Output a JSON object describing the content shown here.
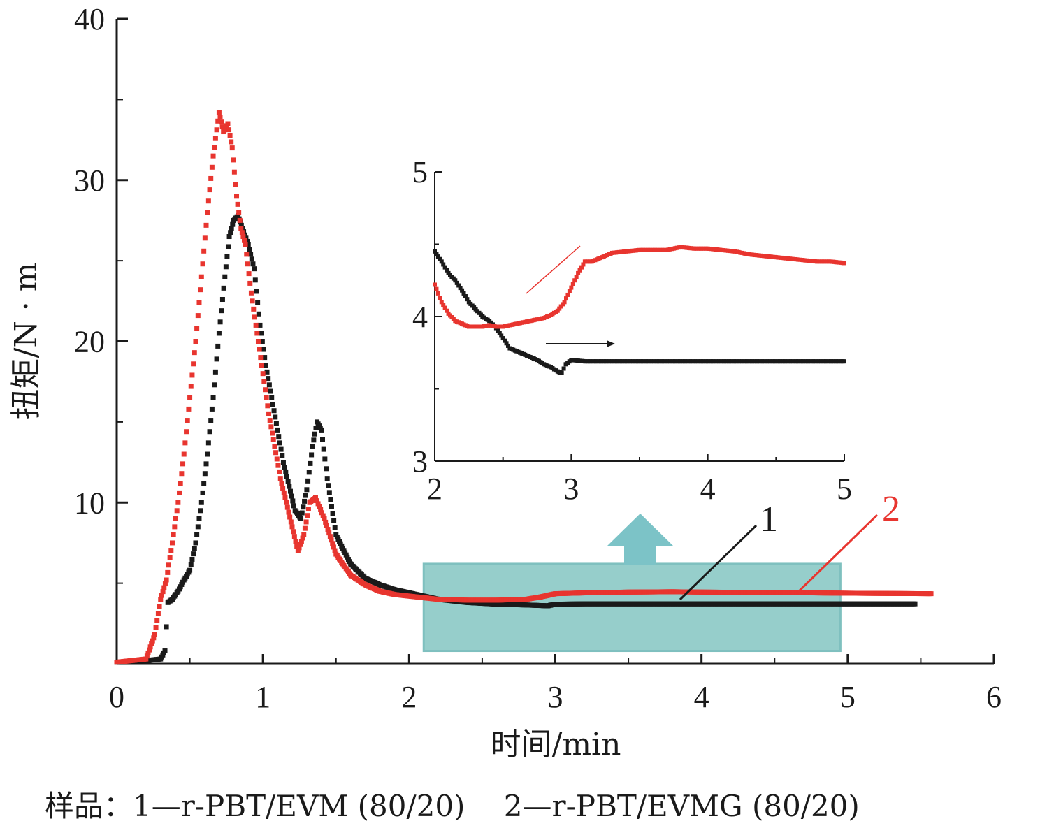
{
  "colors": {
    "series1": "#1a1a1a",
    "series2": "#e8352f",
    "highlight_fill": "#96cecb",
    "highlight_stroke": "#7fc0bf",
    "arrow": "#7cc3c7",
    "axis": "#1a1a1a"
  },
  "caption": "样品：1—r-PBT/EVM (80/20)　 2—r-PBT/EVMG (80/20)",
  "labels": {
    "series1": "1",
    "series2": "2"
  },
  "chart_data": [
    {
      "id": "main",
      "type": "scatter",
      "xlabel": "时间/min",
      "ylabel": "扭矩/N · m",
      "xlim": [
        0,
        6
      ],
      "ylim": [
        0,
        40
      ],
      "xticks": [
        0,
        1,
        2,
        3,
        4,
        5,
        6
      ],
      "xtick_labels": [
        "0",
        "1",
        "2",
        "3",
        "4",
        "5",
        "6"
      ],
      "yticks": [
        10,
        20,
        30,
        40
      ],
      "ytick_labels": [
        "10",
        "20",
        "30",
        "40"
      ],
      "highlight_region": {
        "x": [
          2.1,
          4.95
        ],
        "y": [
          0.8,
          6.2
        ]
      },
      "series": [
        {
          "name": "1",
          "color": "#1a1a1a",
          "x": [
            0,
            0.1,
            0.2,
            0.25,
            0.3,
            0.33,
            0.35,
            0.38,
            0.42,
            0.46,
            0.5,
            0.54,
            0.58,
            0.62,
            0.66,
            0.7,
            0.74,
            0.77,
            0.8,
            0.83,
            0.86,
            0.9,
            0.94,
            0.98,
            1.02,
            1.06,
            1.1,
            1.14,
            1.18,
            1.22,
            1.26,
            1.3,
            1.34,
            1.37,
            1.4,
            1.44,
            1.5,
            1.6,
            1.7,
            1.8,
            1.9,
            2.0,
            2.2,
            2.4,
            2.6,
            2.8,
            2.95,
            3.0,
            3.2,
            3.5,
            4.0,
            4.5,
            5.0,
            5.46
          ],
          "y": [
            0.1,
            0.15,
            0.2,
            0.25,
            0.3,
            0.8,
            3.8,
            4.0,
            4.5,
            5.2,
            5.8,
            7.5,
            10.0,
            13.0,
            16.5,
            20.5,
            24.0,
            26.5,
            27.5,
            27.8,
            27.0,
            26.0,
            24.5,
            21.0,
            18.5,
            16.5,
            14.5,
            12.5,
            11.0,
            9.5,
            9.0,
            10.8,
            13.5,
            15.0,
            14.5,
            11.5,
            8.0,
            6.2,
            5.3,
            4.9,
            4.6,
            4.4,
            4.0,
            3.8,
            3.7,
            3.65,
            3.6,
            3.7,
            3.72,
            3.72,
            3.72,
            3.72,
            3.72,
            3.72
          ]
        },
        {
          "name": "2",
          "color": "#e8352f",
          "x": [
            0,
            0.1,
            0.2,
            0.26,
            0.3,
            0.34,
            0.38,
            0.42,
            0.46,
            0.5,
            0.54,
            0.58,
            0.62,
            0.66,
            0.7,
            0.73,
            0.76,
            0.79,
            0.82,
            0.85,
            0.88,
            0.92,
            0.96,
            1.0,
            1.04,
            1.08,
            1.12,
            1.16,
            1.2,
            1.24,
            1.28,
            1.32,
            1.36,
            1.42,
            1.5,
            1.6,
            1.7,
            1.8,
            1.9,
            2.0,
            2.2,
            2.4,
            2.6,
            2.8,
            2.9,
            3.0,
            3.2,
            3.5,
            3.8,
            4.0,
            4.5,
            5.0,
            5.57
          ],
          "y": [
            0.1,
            0.2,
            0.3,
            1.8,
            4.0,
            5.2,
            7.5,
            10.0,
            13.0,
            16.5,
            20.0,
            24.0,
            28.0,
            31.5,
            34.2,
            33.0,
            33.5,
            32.0,
            29.0,
            27.0,
            26.0,
            23.0,
            20.5,
            18.0,
            15.5,
            13.5,
            11.5,
            10.0,
            8.5,
            7.0,
            8.0,
            10.0,
            10.3,
            9.0,
            6.8,
            5.5,
            4.9,
            4.5,
            4.3,
            4.2,
            4.0,
            3.95,
            3.95,
            4.0,
            4.15,
            4.35,
            4.4,
            4.45,
            4.47,
            4.45,
            4.42,
            4.38,
            4.35
          ]
        }
      ]
    },
    {
      "id": "inset",
      "type": "scatter",
      "xlim": [
        2,
        5
      ],
      "ylim": [
        3,
        5
      ],
      "xticks": [
        2,
        3,
        4,
        5
      ],
      "xtick_labels": [
        "2",
        "3",
        "4",
        "5"
      ],
      "yticks": [
        3,
        4,
        5
      ],
      "ytick_labels": [
        "3",
        "4",
        "5"
      ],
      "series": [
        {
          "name": "1",
          "color": "#1a1a1a",
          "x": [
            2.0,
            2.05,
            2.1,
            2.15,
            2.2,
            2.25,
            2.3,
            2.35,
            2.4,
            2.45,
            2.5,
            2.55,
            2.6,
            2.65,
            2.7,
            2.75,
            2.8,
            2.85,
            2.9,
            2.93,
            2.96,
            3.0,
            3.1,
            3.3,
            3.5,
            3.7,
            4.0,
            4.3,
            4.6,
            5.0
          ],
          "y": [
            4.45,
            4.38,
            4.3,
            4.25,
            4.18,
            4.1,
            4.05,
            4.0,
            3.97,
            3.92,
            3.85,
            3.78,
            3.76,
            3.74,
            3.72,
            3.7,
            3.67,
            3.65,
            3.62,
            3.61,
            3.67,
            3.7,
            3.69,
            3.69,
            3.69,
            3.69,
            3.69,
            3.69,
            3.69,
            3.69
          ]
        },
        {
          "name": "2",
          "color": "#e8352f",
          "x": [
            2.0,
            2.05,
            2.1,
            2.15,
            2.2,
            2.25,
            2.3,
            2.35,
            2.4,
            2.45,
            2.5,
            2.55,
            2.6,
            2.65,
            2.7,
            2.75,
            2.8,
            2.85,
            2.9,
            2.95,
            3.0,
            3.05,
            3.1,
            3.15,
            3.2,
            3.25,
            3.3,
            3.4,
            3.5,
            3.6,
            3.7,
            3.8,
            3.9,
            4.0,
            4.1,
            4.2,
            4.3,
            4.4,
            4.5,
            4.6,
            4.7,
            4.8,
            4.9,
            5.0
          ],
          "y": [
            4.22,
            4.1,
            4.02,
            3.97,
            3.95,
            3.93,
            3.93,
            3.93,
            3.94,
            3.93,
            3.93,
            3.94,
            3.95,
            3.96,
            3.97,
            3.98,
            3.99,
            4.01,
            4.04,
            4.1,
            4.2,
            4.3,
            4.38,
            4.38,
            4.4,
            4.42,
            4.44,
            4.45,
            4.46,
            4.46,
            4.46,
            4.48,
            4.47,
            4.47,
            4.46,
            4.45,
            4.43,
            4.42,
            4.41,
            4.4,
            4.39,
            4.38,
            4.38,
            4.37
          ]
        }
      ]
    }
  ]
}
